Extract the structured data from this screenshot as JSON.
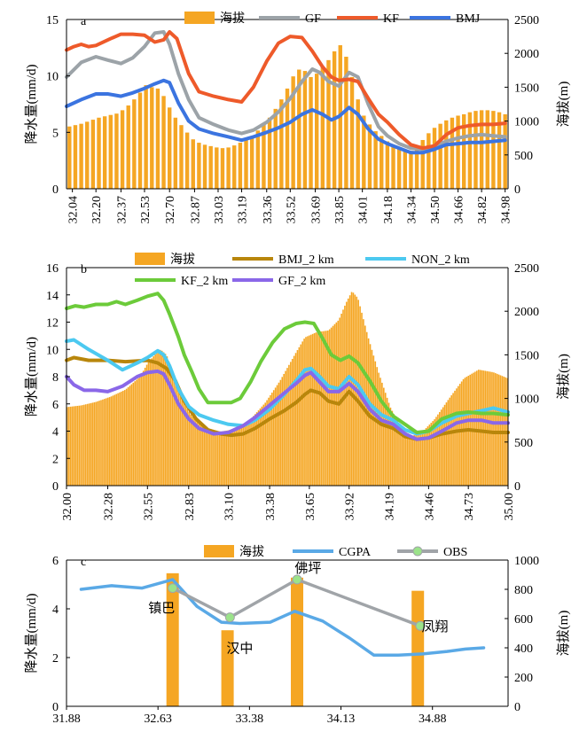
{
  "colors": {
    "elevation": "#F5A623",
    "GF": "#9CA3A8",
    "KF": "#EE5A2A",
    "BMJ": "#3B74E0",
    "BMJ_2km": "#B8860B",
    "NON_2km": "#4CC9F0",
    "KF_2km": "#6CCB3A",
    "GF_2km": "#8A67E8",
    "CGPA": "#5AA9E6",
    "OBS_line": "#A0A4A8",
    "OBS_marker": "#9BE38A"
  },
  "chart_data": [
    {
      "type": "bar+line",
      "panel_label": "a",
      "legend": [
        "海拔",
        "GF",
        "KF",
        "BMJ"
      ],
      "ylabel_left": "降水量(mm/d)",
      "ylabel_right": "海拔(m)",
      "ylim_left": [
        0,
        15
      ],
      "ylim_right": [
        0,
        2500
      ],
      "yticks_left": [
        "0",
        "5",
        "10",
        "15"
      ],
      "yticks_right": [
        "0",
        "500",
        "1000",
        "1500",
        "2000",
        "2500"
      ],
      "xlim": [
        32.0,
        35.0
      ],
      "xticks": [
        "32.04",
        "32.20",
        "32.37",
        "32.53",
        "32.70",
        "32.87",
        "33.03",
        "33.19",
        "33.36",
        "33.52",
        "33.69",
        "33.85",
        "34.01",
        "34.18",
        "34.34",
        "34.50",
        "34.66",
        "34.82",
        "34.98"
      ],
      "elevation": {
        "x": [
          32.02,
          32.06,
          32.1,
          32.14,
          32.18,
          32.22,
          32.26,
          32.3,
          32.34,
          32.38,
          32.42,
          32.46,
          32.5,
          32.54,
          32.58,
          32.62,
          32.66,
          32.7,
          32.74,
          32.78,
          32.82,
          32.86,
          32.9,
          32.94,
          32.98,
          33.02,
          33.06,
          33.1,
          33.14,
          33.18,
          33.22,
          33.26,
          33.3,
          33.34,
          33.38,
          33.42,
          33.46,
          33.5,
          33.54,
          33.58,
          33.62,
          33.66,
          33.7,
          33.74,
          33.78,
          33.82,
          33.86,
          33.9,
          33.94,
          33.98,
          34.02,
          34.06,
          34.1,
          34.14,
          34.18,
          34.22,
          34.26,
          34.3,
          34.34,
          34.38,
          34.42,
          34.46,
          34.5,
          34.54,
          34.58,
          34.62,
          34.66,
          34.7,
          34.74,
          34.78,
          34.82,
          34.86,
          34.9,
          34.94,
          34.98
        ],
        "values": [
          920,
          940,
          960,
          990,
          1020,
          1050,
          1070,
          1090,
          1110,
          1160,
          1230,
          1320,
          1420,
          1530,
          1500,
          1480,
          1370,
          1200,
          1050,
          940,
          830,
          730,
          680,
          650,
          630,
          610,
          600,
          610,
          640,
          680,
          720,
          780,
          860,
          950,
          1050,
          1180,
          1320,
          1480,
          1660,
          1760,
          1740,
          1650,
          1700,
          1800,
          1900,
          2030,
          2120,
          1950,
          1650,
          1320,
          1080,
          950,
          850,
          780,
          700,
          640,
          600,
          580,
          560,
          600,
          720,
          820,
          900,
          960,
          1010,
          1050,
          1080,
          1100,
          1130,
          1150,
          1160,
          1160,
          1150,
          1130,
          1100
        ]
      },
      "series": [
        {
          "name": "GF",
          "x": [
            32.0,
            32.1,
            32.2,
            32.28,
            32.37,
            32.45,
            32.53,
            32.6,
            32.66,
            32.7,
            32.76,
            32.83,
            32.9,
            33.0,
            33.1,
            33.19,
            33.27,
            33.36,
            33.44,
            33.52,
            33.6,
            33.67,
            33.72,
            33.78,
            33.85,
            33.92,
            33.98,
            34.05,
            34.12,
            34.18,
            34.26,
            34.34,
            34.42,
            34.5,
            34.58,
            34.66,
            34.74,
            34.82,
            34.9,
            34.98
          ],
          "values": [
            9.9,
            11.2,
            11.7,
            11.4,
            11.1,
            11.6,
            12.6,
            13.8,
            13.9,
            12.8,
            10.2,
            7.9,
            6.3,
            5.7,
            5.2,
            4.9,
            5.2,
            5.9,
            6.8,
            8.0,
            9.5,
            10.6,
            10.3,
            9.5,
            9.1,
            10.3,
            9.9,
            7.5,
            5.5,
            4.7,
            4.0,
            3.6,
            3.5,
            3.8,
            4.2,
            4.5,
            4.7,
            4.8,
            4.7,
            4.6
          ]
        },
        {
          "name": "KF",
          "x": [
            32.0,
            32.05,
            32.1,
            32.15,
            32.2,
            32.3,
            32.37,
            32.45,
            32.53,
            32.6,
            32.66,
            32.7,
            32.75,
            32.83,
            32.9,
            33.0,
            33.1,
            33.19,
            33.27,
            33.36,
            33.44,
            33.52,
            33.6,
            33.67,
            33.74,
            33.8,
            33.85,
            33.92,
            33.98,
            34.05,
            34.12,
            34.18,
            34.26,
            34.34,
            34.42,
            34.5,
            34.58,
            34.66,
            34.74,
            34.82,
            34.9,
            34.98
          ],
          "values": [
            12.3,
            12.6,
            12.8,
            12.6,
            12.7,
            13.3,
            13.7,
            13.7,
            13.6,
            13.0,
            13.2,
            13.9,
            13.3,
            10.2,
            8.6,
            8.2,
            7.9,
            7.7,
            9.0,
            11.3,
            12.9,
            13.5,
            13.4,
            12.2,
            10.8,
            9.9,
            9.6,
            9.7,
            9.5,
            8.0,
            6.6,
            5.9,
            4.8,
            3.9,
            3.6,
            3.8,
            4.8,
            5.4,
            5.6,
            5.7,
            5.7,
            5.8
          ]
        },
        {
          "name": "BMJ",
          "x": [
            32.0,
            32.1,
            32.2,
            32.28,
            32.37,
            32.45,
            32.53,
            32.6,
            32.66,
            32.7,
            32.76,
            32.83,
            32.9,
            33.0,
            33.1,
            33.19,
            33.27,
            33.36,
            33.44,
            33.52,
            33.6,
            33.67,
            33.74,
            33.8,
            33.85,
            33.92,
            33.98,
            34.05,
            34.12,
            34.18,
            34.26,
            34.34,
            34.42,
            34.5,
            34.58,
            34.66,
            34.74,
            34.82,
            34.9,
            34.98
          ],
          "values": [
            7.3,
            7.9,
            8.4,
            8.4,
            8.2,
            8.5,
            8.9,
            9.3,
            9.6,
            9.4,
            7.6,
            6.0,
            5.3,
            4.9,
            4.6,
            4.3,
            4.6,
            5.0,
            5.4,
            5.9,
            6.6,
            7.0,
            6.6,
            6.1,
            6.4,
            7.2,
            6.6,
            5.3,
            4.4,
            4.0,
            3.6,
            3.2,
            3.2,
            3.5,
            3.9,
            4.0,
            4.1,
            4.1,
            4.2,
            4.3
          ]
        }
      ]
    },
    {
      "type": "bar+line",
      "panel_label": "b",
      "legend": [
        "海拔",
        "BMJ_2 km",
        "NON_2 km",
        "KF_2 km",
        "GF_2 km"
      ],
      "ylabel_left": "降水量(mm/d)",
      "ylabel_right": "海拔(m)",
      "ylim_left": [
        0,
        16
      ],
      "ylim_right": [
        0,
        2500
      ],
      "yticks_left": [
        "0",
        "2",
        "4",
        "6",
        "8",
        "10",
        "12",
        "14",
        "16"
      ],
      "yticks_right": [
        "0",
        "500",
        "1000",
        "1500",
        "2000",
        "2500"
      ],
      "xlim": [
        32.0,
        35.0
      ],
      "xticks": [
        "32.00",
        "32.28",
        "32.55",
        "32.83",
        "33.10",
        "33.38",
        "33.65",
        "33.92",
        "34.19",
        "34.46",
        "34.73",
        "35.00"
      ],
      "elevation": {
        "x": [
          32.0,
          32.1,
          32.2,
          32.3,
          32.4,
          32.5,
          32.55,
          32.6,
          32.64,
          32.68,
          32.72,
          32.78,
          32.85,
          32.95,
          33.05,
          33.15,
          33.25,
          33.35,
          33.45,
          33.55,
          33.62,
          33.7,
          33.78,
          33.85,
          33.9,
          33.94,
          33.98,
          34.05,
          34.12,
          34.2,
          34.28,
          34.35,
          34.42,
          34.5,
          34.6,
          34.7,
          34.8,
          34.9,
          35.0
        ],
        "values": [
          900,
          920,
          960,
          1020,
          1100,
          1250,
          1400,
          1500,
          1560,
          1500,
          1300,
          1000,
          800,
          660,
          620,
          650,
          760,
          950,
          1200,
          1500,
          1700,
          1760,
          1780,
          1900,
          2100,
          2230,
          2150,
          1700,
          1300,
          900,
          640,
          570,
          620,
          760,
          1000,
          1230,
          1330,
          1300,
          1230
        ]
      },
      "series": [
        {
          "name": "BMJ_2 km",
          "x": [
            32.0,
            32.05,
            32.15,
            32.28,
            32.4,
            32.55,
            32.62,
            32.68,
            32.74,
            32.8,
            32.88,
            32.96,
            33.05,
            33.12,
            33.2,
            33.28,
            33.38,
            33.48,
            33.56,
            33.62,
            33.66,
            33.72,
            33.78,
            33.85,
            33.92,
            33.98,
            34.06,
            34.14,
            34.22,
            34.3,
            34.38,
            34.46,
            34.55,
            34.65,
            34.73,
            34.82,
            34.9,
            35.0
          ],
          "values": [
            9.2,
            9.4,
            9.2,
            9.2,
            9.1,
            9.2,
            9.0,
            8.6,
            7.7,
            6.2,
            4.9,
            4.1,
            3.8,
            3.7,
            3.8,
            4.2,
            4.9,
            5.5,
            6.1,
            6.7,
            7.0,
            6.8,
            6.2,
            6.0,
            6.9,
            6.2,
            5.1,
            4.5,
            4.2,
            3.6,
            3.4,
            3.5,
            3.8,
            4.0,
            4.1,
            4.0,
            3.9,
            3.9
          ]
        },
        {
          "name": "NON_2 km",
          "x": [
            32.0,
            32.05,
            32.15,
            32.28,
            32.38,
            32.48,
            32.55,
            32.62,
            32.66,
            32.7,
            32.76,
            32.83,
            32.9,
            33.0,
            33.1,
            33.2,
            33.28,
            33.38,
            33.48,
            33.56,
            33.62,
            33.66,
            33.72,
            33.78,
            33.85,
            33.92,
            33.98,
            34.06,
            34.14,
            34.22,
            34.3,
            34.38,
            34.46,
            34.55,
            34.65,
            34.73,
            34.82,
            34.9,
            35.0
          ],
          "values": [
            10.6,
            10.7,
            10.0,
            9.2,
            8.5,
            9.0,
            9.4,
            9.9,
            9.6,
            8.8,
            7.1,
            5.8,
            5.2,
            4.8,
            4.5,
            4.4,
            4.8,
            5.6,
            6.7,
            7.7,
            8.5,
            8.6,
            8.0,
            7.3,
            7.1,
            8.0,
            7.4,
            6.0,
            5.2,
            4.8,
            4.1,
            3.8,
            4.0,
            4.6,
            5.1,
            5.3,
            5.5,
            5.7,
            5.4
          ]
        },
        {
          "name": "KF_2 km",
          "x": [
            32.0,
            32.06,
            32.12,
            32.2,
            32.28,
            32.34,
            32.4,
            32.48,
            32.55,
            32.62,
            32.66,
            32.7,
            32.76,
            32.8,
            32.85,
            32.9,
            32.96,
            33.05,
            33.12,
            33.18,
            33.25,
            33.32,
            33.4,
            33.48,
            33.56,
            33.62,
            33.68,
            33.74,
            33.8,
            33.86,
            33.92,
            33.98,
            34.06,
            34.14,
            34.22,
            34.3,
            34.38,
            34.46,
            34.55,
            34.65,
            34.73,
            34.82,
            34.9,
            35.0
          ],
          "values": [
            13.0,
            13.2,
            13.1,
            13.3,
            13.3,
            13.5,
            13.3,
            13.6,
            13.9,
            14.1,
            13.6,
            12.6,
            10.9,
            9.6,
            8.4,
            7.1,
            6.1,
            6.1,
            6.1,
            6.4,
            7.6,
            9.1,
            10.5,
            11.5,
            11.9,
            12.0,
            11.9,
            10.8,
            9.6,
            9.2,
            9.5,
            9.0,
            7.7,
            6.2,
            5.1,
            4.5,
            3.9,
            4.0,
            4.9,
            5.3,
            5.4,
            5.3,
            5.3,
            5.2
          ]
        },
        {
          "name": "GF_2 km",
          "x": [
            32.0,
            32.05,
            32.12,
            32.2,
            32.28,
            32.38,
            32.48,
            32.55,
            32.62,
            32.66,
            32.7,
            32.76,
            32.83,
            32.9,
            33.0,
            33.1,
            33.2,
            33.28,
            33.38,
            33.48,
            33.56,
            33.62,
            33.66,
            33.72,
            33.78,
            33.85,
            33.92,
            33.98,
            34.06,
            34.14,
            34.22,
            34.3,
            34.38,
            34.46,
            34.55,
            34.65,
            34.73,
            34.82,
            34.9,
            35.0
          ],
          "values": [
            8.0,
            7.4,
            7.0,
            7.0,
            6.9,
            7.3,
            8.0,
            8.3,
            8.4,
            8.2,
            7.4,
            6.0,
            4.9,
            4.2,
            3.8,
            3.9,
            4.4,
            5.0,
            5.9,
            6.8,
            7.5,
            8.1,
            8.3,
            7.6,
            6.9,
            6.9,
            7.5,
            6.9,
            5.6,
            4.8,
            4.5,
            3.8,
            3.4,
            3.5,
            4.0,
            4.6,
            4.8,
            4.8,
            4.6,
            4.6
          ]
        }
      ]
    },
    {
      "type": "bar+line",
      "panel_label": "c",
      "legend": [
        "海拔",
        "CGPA",
        "OBS"
      ],
      "ylabel_left": "降水量(mm/d)",
      "ylabel_right": "海拔(m)",
      "ylim_left": [
        0,
        6
      ],
      "ylim_right": [
        0,
        1000
      ],
      "yticks_left": [
        "0",
        "2",
        "4",
        "6"
      ],
      "yticks_right": [
        "0",
        "200",
        "400",
        "600",
        "800",
        "1000"
      ],
      "xlim": [
        31.88,
        35.5
      ],
      "xticks": [
        "31.88",
        "32.63",
        "33.38",
        "34.13",
        "34.88"
      ],
      "elevation": {
        "x": [
          32.75,
          33.2,
          33.77,
          34.76
        ],
        "values": [
          910,
          520,
          880,
          790
        ]
      },
      "series": [
        {
          "name": "CGPA",
          "x": [
            32.0,
            32.25,
            32.5,
            32.75,
            32.95,
            33.15,
            33.3,
            33.55,
            33.75,
            33.98,
            34.2,
            34.4,
            34.6,
            34.8,
            35.0,
            35.15,
            35.3
          ],
          "values": [
            4.8,
            4.95,
            4.85,
            5.2,
            4.1,
            3.45,
            3.4,
            3.45,
            3.9,
            3.5,
            2.8,
            2.1,
            2.1,
            2.15,
            2.25,
            2.35,
            2.4
          ]
        },
        {
          "name": "OBS",
          "x": [
            32.75,
            33.22,
            33.77,
            34.78
          ],
          "values": [
            4.85,
            3.65,
            5.2,
            3.3
          ]
        }
      ],
      "annotations": [
        {
          "text": "镇巴",
          "x": 32.66,
          "y": 3.85
        },
        {
          "text": "汉中",
          "x": 33.3,
          "y": 2.2
        },
        {
          "text": "佛坪",
          "x": 33.86,
          "y": 5.5
        },
        {
          "text": "凤翔",
          "x": 34.9,
          "y": 3.1
        }
      ]
    }
  ]
}
